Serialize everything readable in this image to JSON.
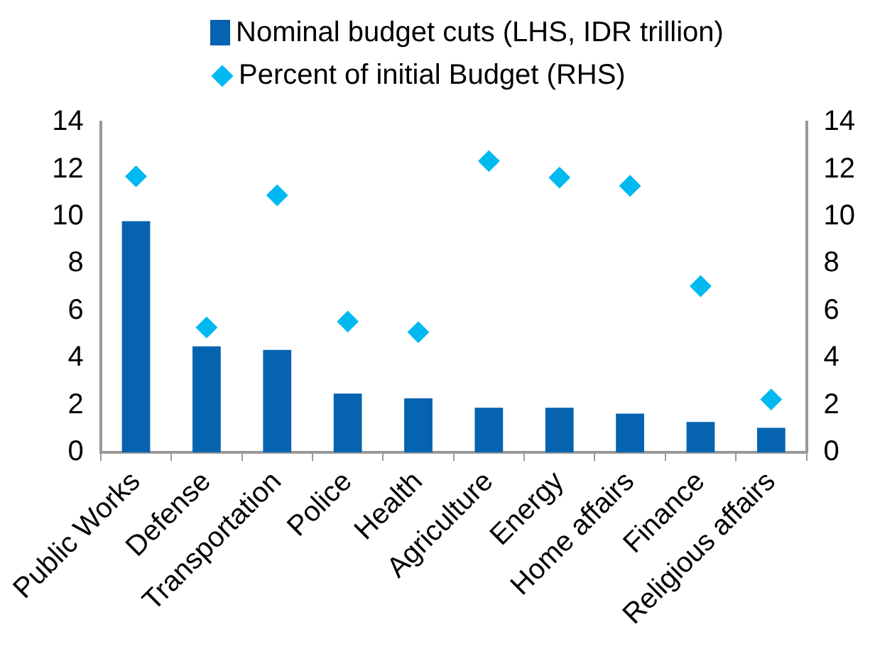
{
  "chart_data": {
    "type": "bar",
    "categories": [
      "Public Works",
      "Defense",
      "Transportation",
      "Police",
      "Health",
      "Agriculture",
      "Energy",
      "Home affairs",
      "Finance",
      "Religious affairs"
    ],
    "series": [
      {
        "name": "Nominal budget cuts (LHS, IDR trillion)",
        "color": "#0563b0",
        "values": [
          9.8,
          4.5,
          4.35,
          2.5,
          2.3,
          1.9,
          1.9,
          1.65,
          1.3,
          1.05
        ]
      },
      {
        "name": "Percent of initial Budget (RHS)",
        "type": "scatter",
        "axis": "y2",
        "marker": "diamond",
        "color": "#00b9f0",
        "values": [
          11.7,
          5.3,
          10.9,
          5.55,
          5.1,
          12.35,
          11.65,
          11.3,
          7.05,
          2.25
        ]
      }
    ],
    "ylim": [
      0,
      14
    ],
    "yticks": [
      0,
      2,
      4,
      6,
      8,
      10,
      12,
      14
    ],
    "y2lim": [
      0,
      14
    ],
    "y2ticks": [
      0,
      2,
      4,
      6,
      8,
      10,
      12,
      14
    ],
    "grid": false,
    "legend": "top"
  }
}
